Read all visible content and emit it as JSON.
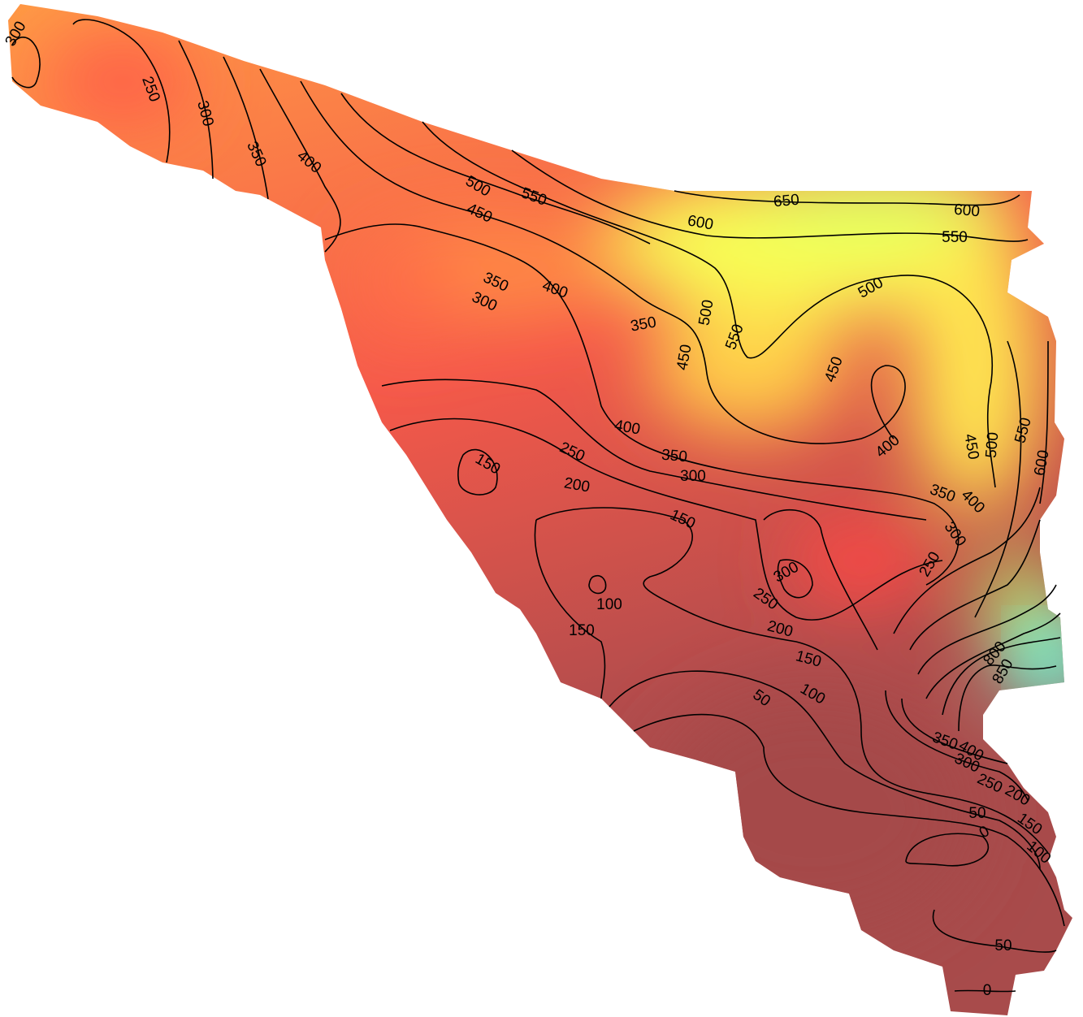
{
  "contour_labels": [
    300,
    250,
    300,
    350,
    400,
    500,
    550,
    450,
    650,
    600,
    600,
    550,
    350,
    400,
    300,
    350,
    500,
    550,
    450,
    500,
    450,
    400,
    400,
    350,
    300,
    250,
    200,
    150,
    150,
    450,
    500,
    550,
    600,
    350,
    400,
    300,
    250,
    300,
    250,
    100,
    150,
    200,
    150,
    100,
    50,
    850,
    800,
    400,
    350,
    300,
    250,
    200,
    50,
    0,
    150,
    100,
    50,
    0
  ]
}
